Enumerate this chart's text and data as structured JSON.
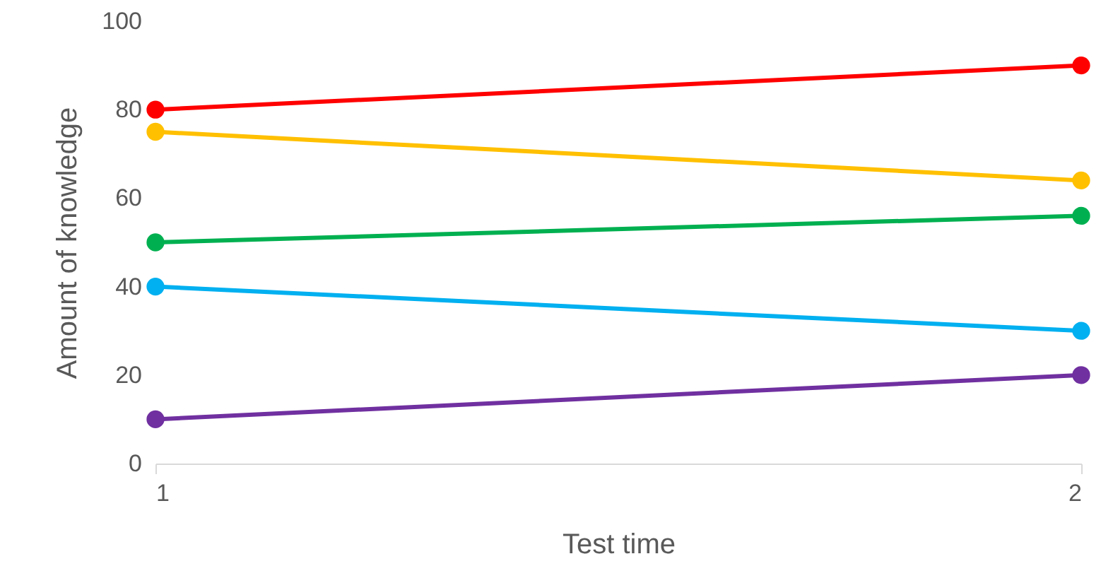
{
  "chart_data": {
    "type": "line",
    "xlabel": "Test time",
    "ylabel": "Amount of knowledge",
    "x": [
      1,
      2
    ],
    "xlim": [
      1,
      2
    ],
    "xticks": [
      1,
      2
    ],
    "ylim": [
      0,
      100
    ],
    "yticks": [
      0,
      20,
      40,
      60,
      80,
      100
    ],
    "grid": false,
    "marker": "circle",
    "line_style": "solid",
    "series": [
      {
        "color": "#ff0000",
        "values": [
          80,
          90
        ]
      },
      {
        "color": "#ffc000",
        "values": [
          75,
          64
        ]
      },
      {
        "color": "#00b050",
        "values": [
          50,
          56
        ]
      },
      {
        "color": "#00b0f0",
        "values": [
          40,
          30
        ]
      },
      {
        "color": "#7030a0",
        "values": [
          10,
          20
        ]
      }
    ]
  }
}
